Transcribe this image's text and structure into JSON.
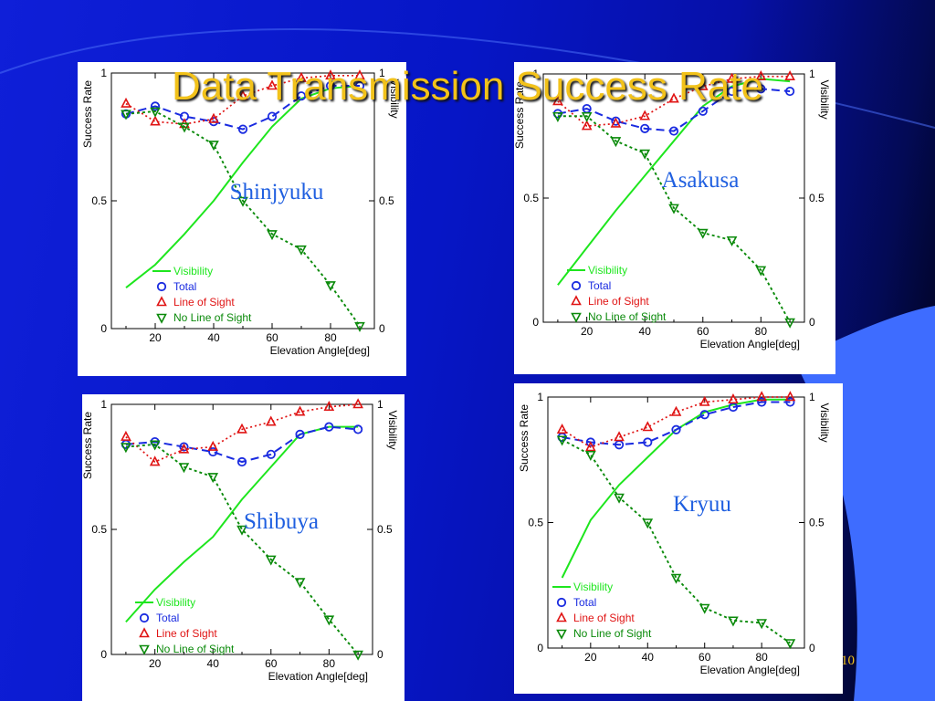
{
  "slide": {
    "title": "Data Transmission Success Rate",
    "page_number": "10"
  },
  "colors": {
    "title": "#f2c21a",
    "visibility": "#1ee61e",
    "total": "#1a2be0",
    "line_of_sight": "#e01414",
    "no_line_of_sight": "#0a8a0a",
    "location_label": "#1f5fe0"
  },
  "chart_data": [
    {
      "type": "line",
      "location": "Shinjyuku",
      "xlabel": "Elevation Angle[deg]",
      "ylabel": "Success Rate",
      "ylabel_right": "Visibility",
      "xlim": [
        5,
        95
      ],
      "ylim": [
        0,
        1
      ],
      "xticks": [
        "20",
        "40",
        "60",
        "80"
      ],
      "yticks": [
        "0",
        "0.5",
        "1"
      ],
      "yticks_right": [
        "0",
        "0.5",
        "1"
      ],
      "grid": false,
      "legend": "bottom-left",
      "series": [
        {
          "name": "Visibility",
          "x": [
            10,
            20,
            30,
            40,
            50,
            60,
            70,
            80,
            90
          ],
          "values": [
            0.16,
            0.25,
            0.37,
            0.5,
            0.65,
            0.79,
            0.9,
            0.94,
            0.95
          ]
        },
        {
          "name": "Total",
          "x": [
            10,
            20,
            30,
            40,
            50,
            60,
            70,
            80,
            90
          ],
          "values": [
            0.84,
            0.87,
            0.83,
            0.81,
            0.78,
            0.83,
            0.91,
            0.95,
            0.95
          ]
        },
        {
          "name": "Line of Sight",
          "x": [
            10,
            20,
            30,
            40,
            50,
            60,
            70,
            80,
            90
          ],
          "values": [
            0.88,
            0.81,
            0.8,
            0.82,
            0.91,
            0.95,
            0.98,
            0.99,
            0.99
          ]
        },
        {
          "name": "No Line of Sight",
          "x": [
            10,
            20,
            30,
            40,
            50,
            60,
            70,
            80,
            90
          ],
          "values": [
            0.84,
            0.85,
            0.79,
            0.72,
            0.5,
            0.37,
            0.31,
            0.17,
            0.01
          ]
        }
      ]
    },
    {
      "type": "line",
      "location": "Asakusa",
      "xlabel": "Elevation Angle[deg]",
      "ylabel": "Success Rate",
      "ylabel_right": "Visibility",
      "xlim": [
        5,
        95
      ],
      "ylim": [
        0,
        1
      ],
      "xticks": [
        "20",
        "40",
        "60",
        "80"
      ],
      "yticks": [
        "0",
        "0.5",
        "1"
      ],
      "yticks_right": [
        "0",
        "0.5",
        "1"
      ],
      "grid": false,
      "legend": "bottom-left",
      "series": [
        {
          "name": "Visibility",
          "x": [
            10,
            20,
            30,
            40,
            50,
            60,
            70,
            80,
            90
          ],
          "values": [
            0.15,
            0.3,
            0.45,
            0.59,
            0.73,
            0.87,
            0.95,
            0.98,
            0.97
          ]
        },
        {
          "name": "Total",
          "x": [
            10,
            20,
            30,
            40,
            50,
            60,
            70,
            80,
            90
          ],
          "values": [
            0.84,
            0.86,
            0.81,
            0.78,
            0.77,
            0.85,
            0.93,
            0.94,
            0.93
          ]
        },
        {
          "name": "Line of Sight",
          "x": [
            10,
            20,
            30,
            40,
            50,
            60,
            70,
            80,
            90
          ],
          "values": [
            0.89,
            0.79,
            0.8,
            0.83,
            0.9,
            0.95,
            0.98,
            0.99,
            0.99
          ]
        },
        {
          "name": "No Line of Sight",
          "x": [
            10,
            20,
            30,
            40,
            50,
            60,
            70,
            80,
            90
          ],
          "values": [
            0.83,
            0.83,
            0.73,
            0.68,
            0.46,
            0.36,
            0.33,
            0.21,
            0.0
          ]
        }
      ]
    },
    {
      "type": "line",
      "location": "Shibuya",
      "xlabel": "Elevation Angle[deg]",
      "ylabel": "Success Rate",
      "ylabel_right": "Visibility",
      "xlim": [
        5,
        95
      ],
      "ylim": [
        0,
        1
      ],
      "xticks": [
        "20",
        "40",
        "60",
        "80"
      ],
      "yticks": [
        "0",
        "0.5",
        "1"
      ],
      "yticks_right": [
        "0",
        "0.5",
        "1"
      ],
      "grid": false,
      "legend": "bottom-left",
      "series": [
        {
          "name": "Visibility",
          "x": [
            10,
            20,
            30,
            40,
            50,
            60,
            70,
            80,
            90
          ],
          "values": [
            0.13,
            0.26,
            0.37,
            0.47,
            0.62,
            0.75,
            0.88,
            0.91,
            0.91
          ]
        },
        {
          "name": "Total",
          "x": [
            10,
            20,
            30,
            40,
            50,
            60,
            70,
            80,
            90
          ],
          "values": [
            0.84,
            0.85,
            0.83,
            0.81,
            0.77,
            0.8,
            0.88,
            0.91,
            0.9
          ]
        },
        {
          "name": "Line of Sight",
          "x": [
            10,
            20,
            30,
            40,
            50,
            60,
            70,
            80,
            90
          ],
          "values": [
            0.87,
            0.77,
            0.82,
            0.83,
            0.9,
            0.93,
            0.97,
            0.99,
            1.0
          ]
        },
        {
          "name": "No Line of Sight",
          "x": [
            10,
            20,
            30,
            40,
            50,
            60,
            70,
            80,
            90
          ],
          "values": [
            0.83,
            0.84,
            0.75,
            0.71,
            0.5,
            0.38,
            0.29,
            0.14,
            0.0
          ]
        }
      ]
    },
    {
      "type": "line",
      "location": "Kryuu",
      "xlabel": "Elevation Angle[deg]",
      "ylabel": "Success Rate",
      "ylabel_right": "Visibility",
      "xlim": [
        5,
        95
      ],
      "ylim": [
        0,
        1
      ],
      "xticks": [
        "20",
        "40",
        "60",
        "80"
      ],
      "yticks": [
        "0",
        "0.5",
        "1"
      ],
      "yticks_right": [
        "0",
        "0.5",
        "1"
      ],
      "grid": false,
      "legend": "bottom-left",
      "series": [
        {
          "name": "Visibility",
          "x": [
            10,
            20,
            30,
            40,
            50,
            60,
            70,
            80,
            90
          ],
          "values": [
            0.28,
            0.51,
            0.65,
            0.76,
            0.87,
            0.94,
            0.97,
            0.99,
            0.99
          ]
        },
        {
          "name": "Total",
          "x": [
            10,
            20,
            30,
            40,
            50,
            60,
            70,
            80,
            90
          ],
          "values": [
            0.84,
            0.82,
            0.81,
            0.82,
            0.87,
            0.93,
            0.96,
            0.98,
            0.98
          ]
        },
        {
          "name": "Line of Sight",
          "x": [
            10,
            20,
            30,
            40,
            50,
            60,
            70,
            80,
            90
          ],
          "values": [
            0.87,
            0.8,
            0.84,
            0.88,
            0.94,
            0.98,
            0.99,
            1.0,
            1.0
          ]
        },
        {
          "name": "No Line of Sight",
          "x": [
            10,
            20,
            30,
            40,
            50,
            60,
            70,
            80,
            90
          ],
          "values": [
            0.83,
            0.77,
            0.6,
            0.5,
            0.28,
            0.16,
            0.11,
            0.1,
            0.02
          ]
        }
      ]
    }
  ]
}
